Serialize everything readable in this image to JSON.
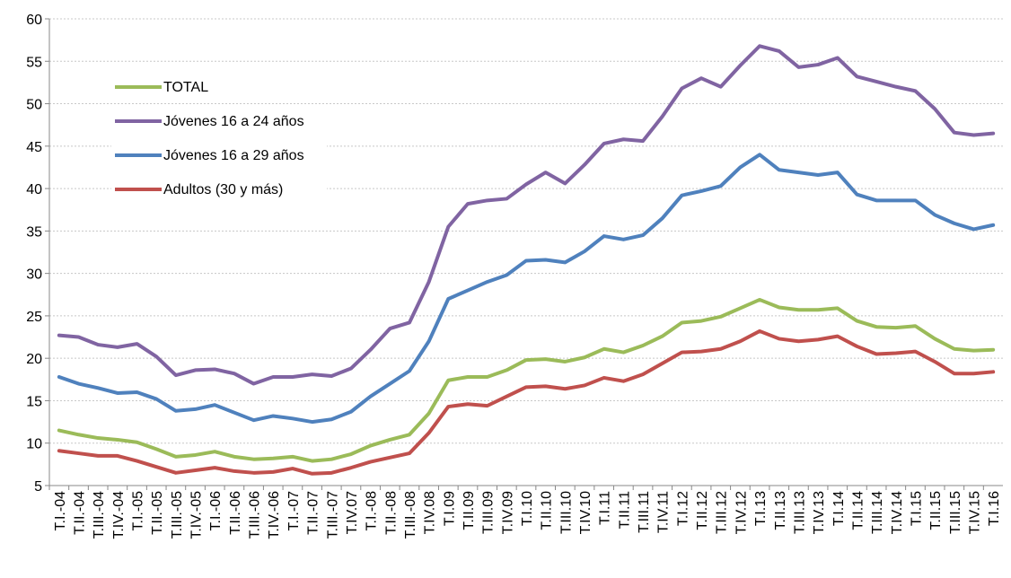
{
  "chart_data": {
    "type": "line",
    "categories": [
      "T.I.-04",
      "T.II.-04",
      "T.III.-04",
      "T.IV.-04",
      "T.I.-05",
      "T.II.-05",
      "T.III.-05",
      "T.IV.-05",
      "T.I.-06",
      "T.II.-06",
      "T.III.-06",
      "T.IV.-06",
      "T.I.-07",
      "T.II.-07",
      "T.III.-07",
      "T.IV.07",
      "T.I.-08",
      "T.II.-08",
      "T.III.-08",
      "T.IV.08",
      "T.I.09",
      "T.II.09",
      "T.III.09",
      "T.IV.09",
      "T.I.10",
      "T.II.10",
      "T.III.10",
      "T.IV.10",
      "T.I.11",
      "T.II.11",
      "T.III.11",
      "T.IV.11",
      "T.I.12",
      "T.II.12",
      "T.III.12",
      "T.IV.12",
      "T.I.13",
      "T.II.13",
      "T.III.13",
      "T.IV.13",
      "T.I.14",
      "T.II.14",
      "T.III.14",
      "T.IV.14",
      "T.I.15",
      "T.II.15",
      "T.III.15",
      "T.IV.15",
      "T.I.16"
    ],
    "series": [
      {
        "name": "TOTAL",
        "color": "#9bbb59",
        "values": [
          11.5,
          11,
          10.6,
          10.4,
          10.1,
          9.3,
          8.4,
          8.6,
          9.0,
          8.4,
          8.1,
          8.2,
          8.4,
          7.9,
          8.1,
          8.7,
          9.7,
          10.4,
          11.0,
          13.5,
          17.4,
          17.8,
          17.8,
          18.6,
          19.8,
          19.9,
          19.6,
          20.1,
          21.1,
          20.7,
          21.5,
          22.6,
          24.2,
          24.4,
          24.9,
          25.9,
          26.9,
          26.0,
          25.7,
          25.7,
          25.9,
          24.4,
          23.7,
          23.6,
          23.8,
          22.3,
          21.1,
          20.9,
          21.0
        ]
      },
      {
        "name": "Jóvenes 16 a 24 años",
        "color": "#8064a2",
        "values": [
          22.7,
          22.5,
          21.6,
          21.3,
          21.7,
          20.2,
          18.0,
          18.6,
          18.7,
          18.2,
          17.0,
          17.8,
          17.8,
          18.1,
          17.9,
          18.8,
          21.0,
          23.5,
          24.2,
          29.0,
          35.5,
          38.2,
          38.6,
          38.8,
          40.5,
          41.9,
          40.6,
          42.8,
          45.3,
          45.8,
          45.6,
          48.5,
          51.8,
          53.0,
          52.0,
          54.5,
          56.8,
          56.2,
          54.3,
          54.6,
          55.4,
          53.2,
          52.6,
          52.0,
          51.5,
          49.4,
          46.6,
          46.3,
          46.5
        ]
      },
      {
        "name": "Jóvenes 16 a 29 años",
        "color": "#4f81bd",
        "values": [
          17.8,
          17.0,
          16.5,
          15.9,
          16.0,
          15.2,
          13.8,
          14.0,
          14.5,
          13.6,
          12.7,
          13.2,
          12.9,
          12.5,
          12.8,
          13.7,
          15.5,
          17.0,
          18.5,
          22.0,
          27.0,
          28.0,
          29.0,
          29.8,
          31.5,
          31.6,
          31.3,
          32.6,
          34.4,
          34.0,
          34.5,
          36.5,
          39.2,
          39.7,
          40.3,
          42.5,
          44.0,
          42.2,
          41.9,
          41.6,
          41.9,
          39.3,
          38.6,
          38.6,
          38.6,
          36.9,
          35.9,
          35.2,
          35.7
        ]
      },
      {
        "name": "Adultos (30 y más)",
        "color": "#c0504d",
        "values": [
          9.1,
          8.8,
          8.5,
          8.5,
          7.9,
          7.2,
          6.5,
          6.8,
          7.1,
          6.7,
          6.5,
          6.6,
          7.0,
          6.4,
          6.5,
          7.1,
          7.8,
          8.3,
          8.8,
          11.2,
          14.3,
          14.6,
          14.4,
          15.5,
          16.6,
          16.7,
          16.4,
          16.8,
          17.7,
          17.3,
          18.1,
          19.4,
          20.7,
          20.8,
          21.1,
          22.0,
          23.2,
          22.3,
          22.0,
          22.2,
          22.6,
          21.4,
          20.5,
          20.6,
          20.8,
          19.6,
          18.2,
          18.2,
          18.4
        ]
      }
    ],
    "ylim": [
      5,
      60
    ],
    "yticks": [
      5,
      10,
      15,
      20,
      25,
      30,
      35,
      40,
      45,
      50,
      55,
      60
    ],
    "grid": true,
    "legend": "upper-left"
  }
}
